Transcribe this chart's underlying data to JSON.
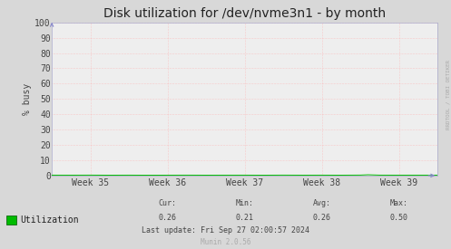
{
  "title": "Disk utilization for /dev/nvme3n1 - by month",
  "ylabel": "% busy",
  "xtick_labels": [
    "Week 35",
    "Week 36",
    "Week 37",
    "Week 38",
    "Week 39"
  ],
  "ytick_values": [
    0,
    10,
    20,
    30,
    40,
    50,
    60,
    70,
    80,
    90,
    100
  ],
  "ylim": [
    0,
    100
  ],
  "bg_color": "#d8d8d8",
  "plot_bg_color": "#eeeeee",
  "grid_color": "#ffaaaa",
  "line_color": "#00bb00",
  "line_data_x": [
    0.0,
    0.05,
    0.1,
    0.15,
    0.2,
    0.25,
    0.3,
    0.35,
    0.4,
    0.45,
    0.5,
    0.55,
    0.6,
    0.65,
    0.7,
    0.75,
    0.8,
    0.82,
    0.85,
    0.9,
    0.95,
    1.0
  ],
  "line_data_y": [
    0.26,
    0.25,
    0.28,
    0.22,
    0.26,
    0.21,
    0.24,
    0.27,
    0.23,
    0.25,
    0.26,
    0.22,
    0.28,
    0.24,
    0.26,
    0.23,
    0.3,
    0.5,
    0.27,
    0.25,
    0.26,
    0.26
  ],
  "legend_label": "Utilization",
  "legend_color": "#00bb00",
  "cur_val": "0.26",
  "min_val": "0.21",
  "avg_val": "0.26",
  "max_val": "0.50",
  "last_update": "Last update: Fri Sep 27 02:00:57 2024",
  "munin_label": "Munin 2.0.56",
  "rrdtool_label": "RRDTOOL / TOBI OETIKER",
  "title_fontsize": 10,
  "axis_fontsize": 7,
  "small_fontsize": 6,
  "arrow_color": "#8888cc",
  "spine_color": "#aaaacc"
}
